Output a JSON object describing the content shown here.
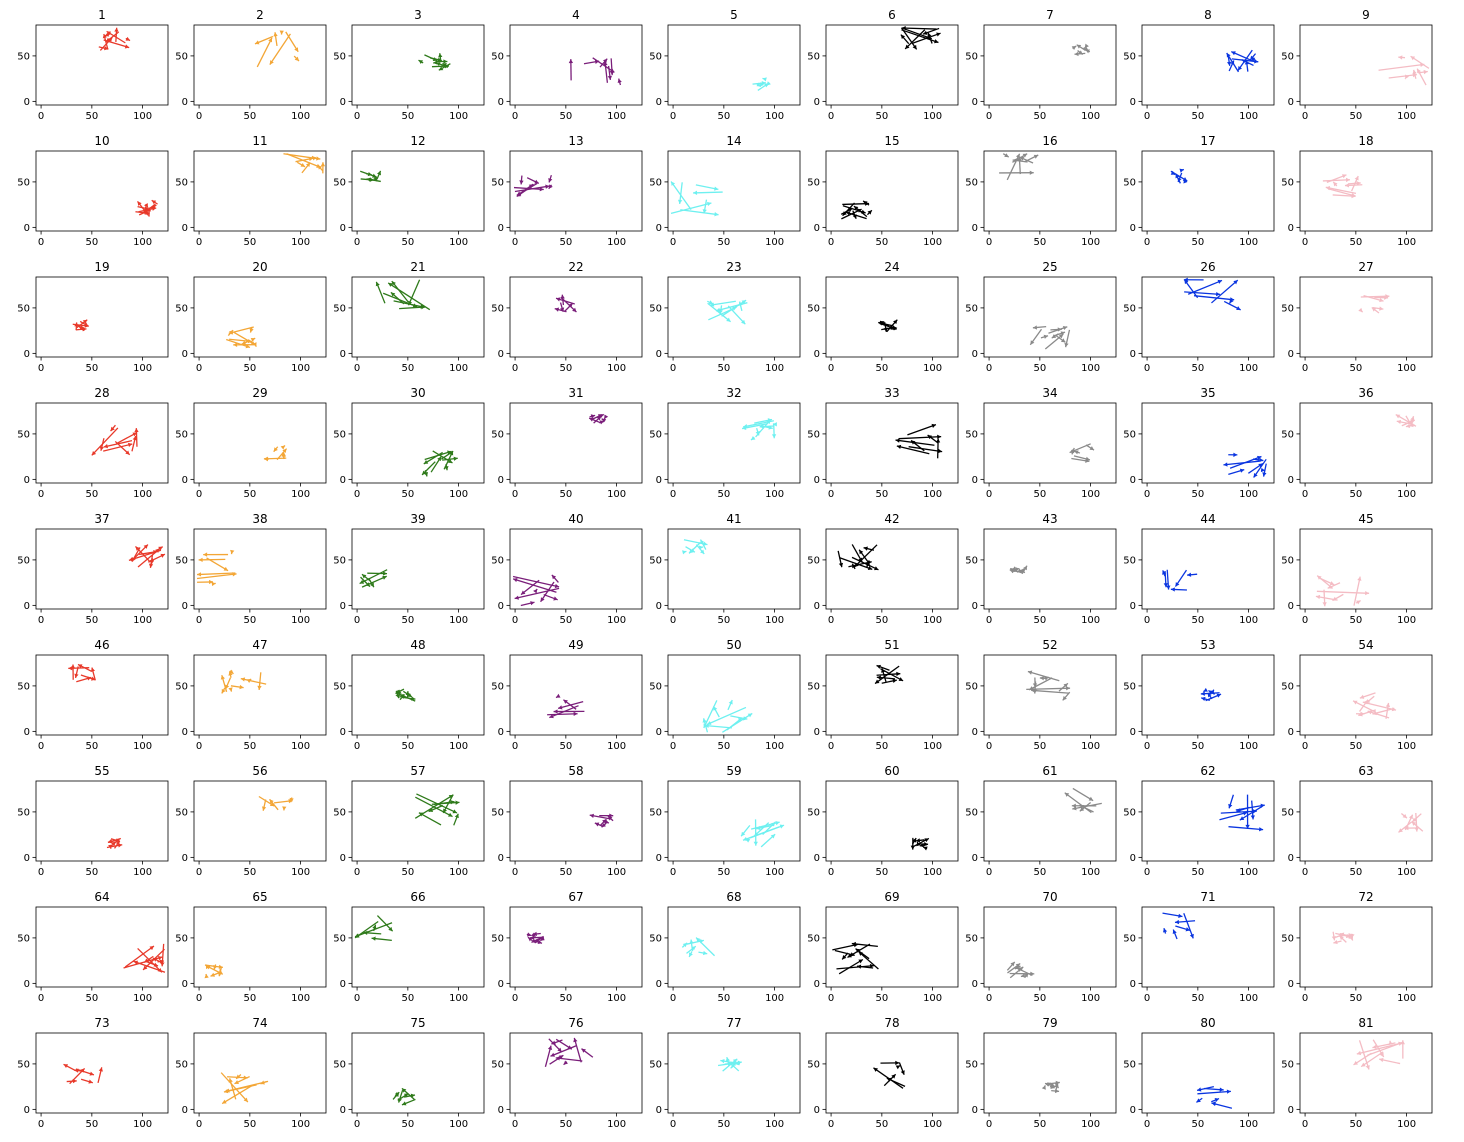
{
  "figure": {
    "grid_rows": 9,
    "grid_cols": 9,
    "panel_count": 81,
    "description": ""
  },
  "chart_data": {
    "type": "quiver-grid",
    "panels": 81,
    "xlim": [
      -5,
      125
    ],
    "ylim": [
      -4,
      84
    ],
    "xticks": [
      0,
      50,
      100
    ],
    "yticks": [
      0,
      50
    ],
    "titles": [
      "1",
      "2",
      "3",
      "4",
      "5",
      "6",
      "7",
      "8",
      "9",
      "10",
      "11",
      "12",
      "13",
      "14",
      "15",
      "16",
      "17",
      "18",
      "19",
      "20",
      "21",
      "22",
      "23",
      "24",
      "25",
      "26",
      "27",
      "28",
      "29",
      "30",
      "31",
      "32",
      "33",
      "34",
      "35",
      "36",
      "37",
      "38",
      "39",
      "40",
      "41",
      "42",
      "43",
      "44",
      "45",
      "46",
      "47",
      "48",
      "49",
      "50",
      "51",
      "52",
      "53",
      "54",
      "55",
      "56",
      "57",
      "58",
      "59",
      "60",
      "61",
      "62",
      "63",
      "64",
      "65",
      "66",
      "67",
      "68",
      "69",
      "70",
      "71",
      "72",
      "73",
      "74",
      "75",
      "76",
      "77",
      "78",
      "79",
      "80",
      "81"
    ],
    "colors": {
      "red": "#e8392a",
      "orange": "#f3a636",
      "green": "#2e7a1a",
      "purple": "#7a1e7a",
      "cyan": "#6ef0f0",
      "black": "#000000",
      "gray": "#8a8a8a",
      "blue": "#0a35e0",
      "pink": "#f4bcc4"
    },
    "color_cycle": [
      "red",
      "orange",
      "green",
      "purple",
      "cyan",
      "black",
      "gray",
      "blue",
      "pink"
    ],
    "grid": false,
    "legend": "none"
  }
}
